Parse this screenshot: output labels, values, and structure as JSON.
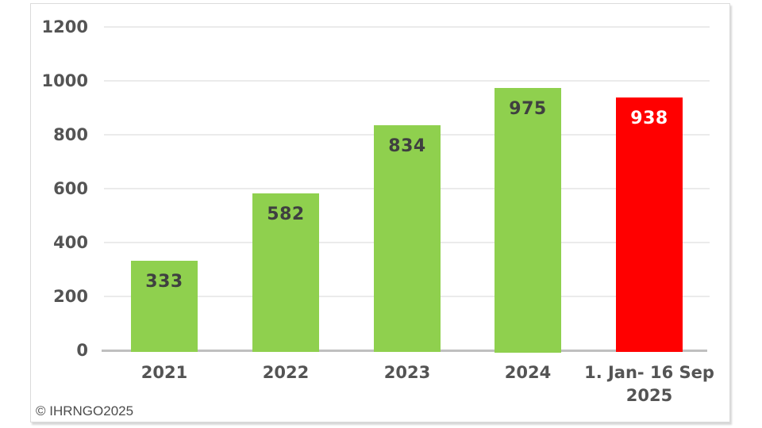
{
  "chart_data": {
    "type": "bar",
    "categories": [
      "2021",
      "2022",
      "2023",
      "2024",
      "1. Jan- 16 Sep\n2025"
    ],
    "values": [
      333,
      582,
      834,
      975,
      938
    ],
    "bar_colors": [
      "#8FD04E",
      "#8FD04E",
      "#8FD04E",
      "#8FD04E",
      "#FF0000"
    ],
    "value_label_colors": [
      "#3F4040",
      "#3F4040",
      "#3F4040",
      "#3F4040",
      "#FFFFFF"
    ],
    "title": "",
    "xlabel": "",
    "ylabel": "",
    "ylim": [
      0,
      1200
    ],
    "yticks": [
      0,
      200,
      400,
      600,
      800,
      1000,
      1200
    ],
    "grid": true,
    "legend": false
  },
  "footer": {
    "copyright": "© IHRNGO2025"
  },
  "theme": {
    "background": "#FFFFFF",
    "axis_text_color": "#545454",
    "gridline_color": "#EBEBEB",
    "axis_line_color": "#BFBFBF",
    "frame_border_color": "#DBDBDB",
    "copyright_color": "#4C4C4C"
  }
}
